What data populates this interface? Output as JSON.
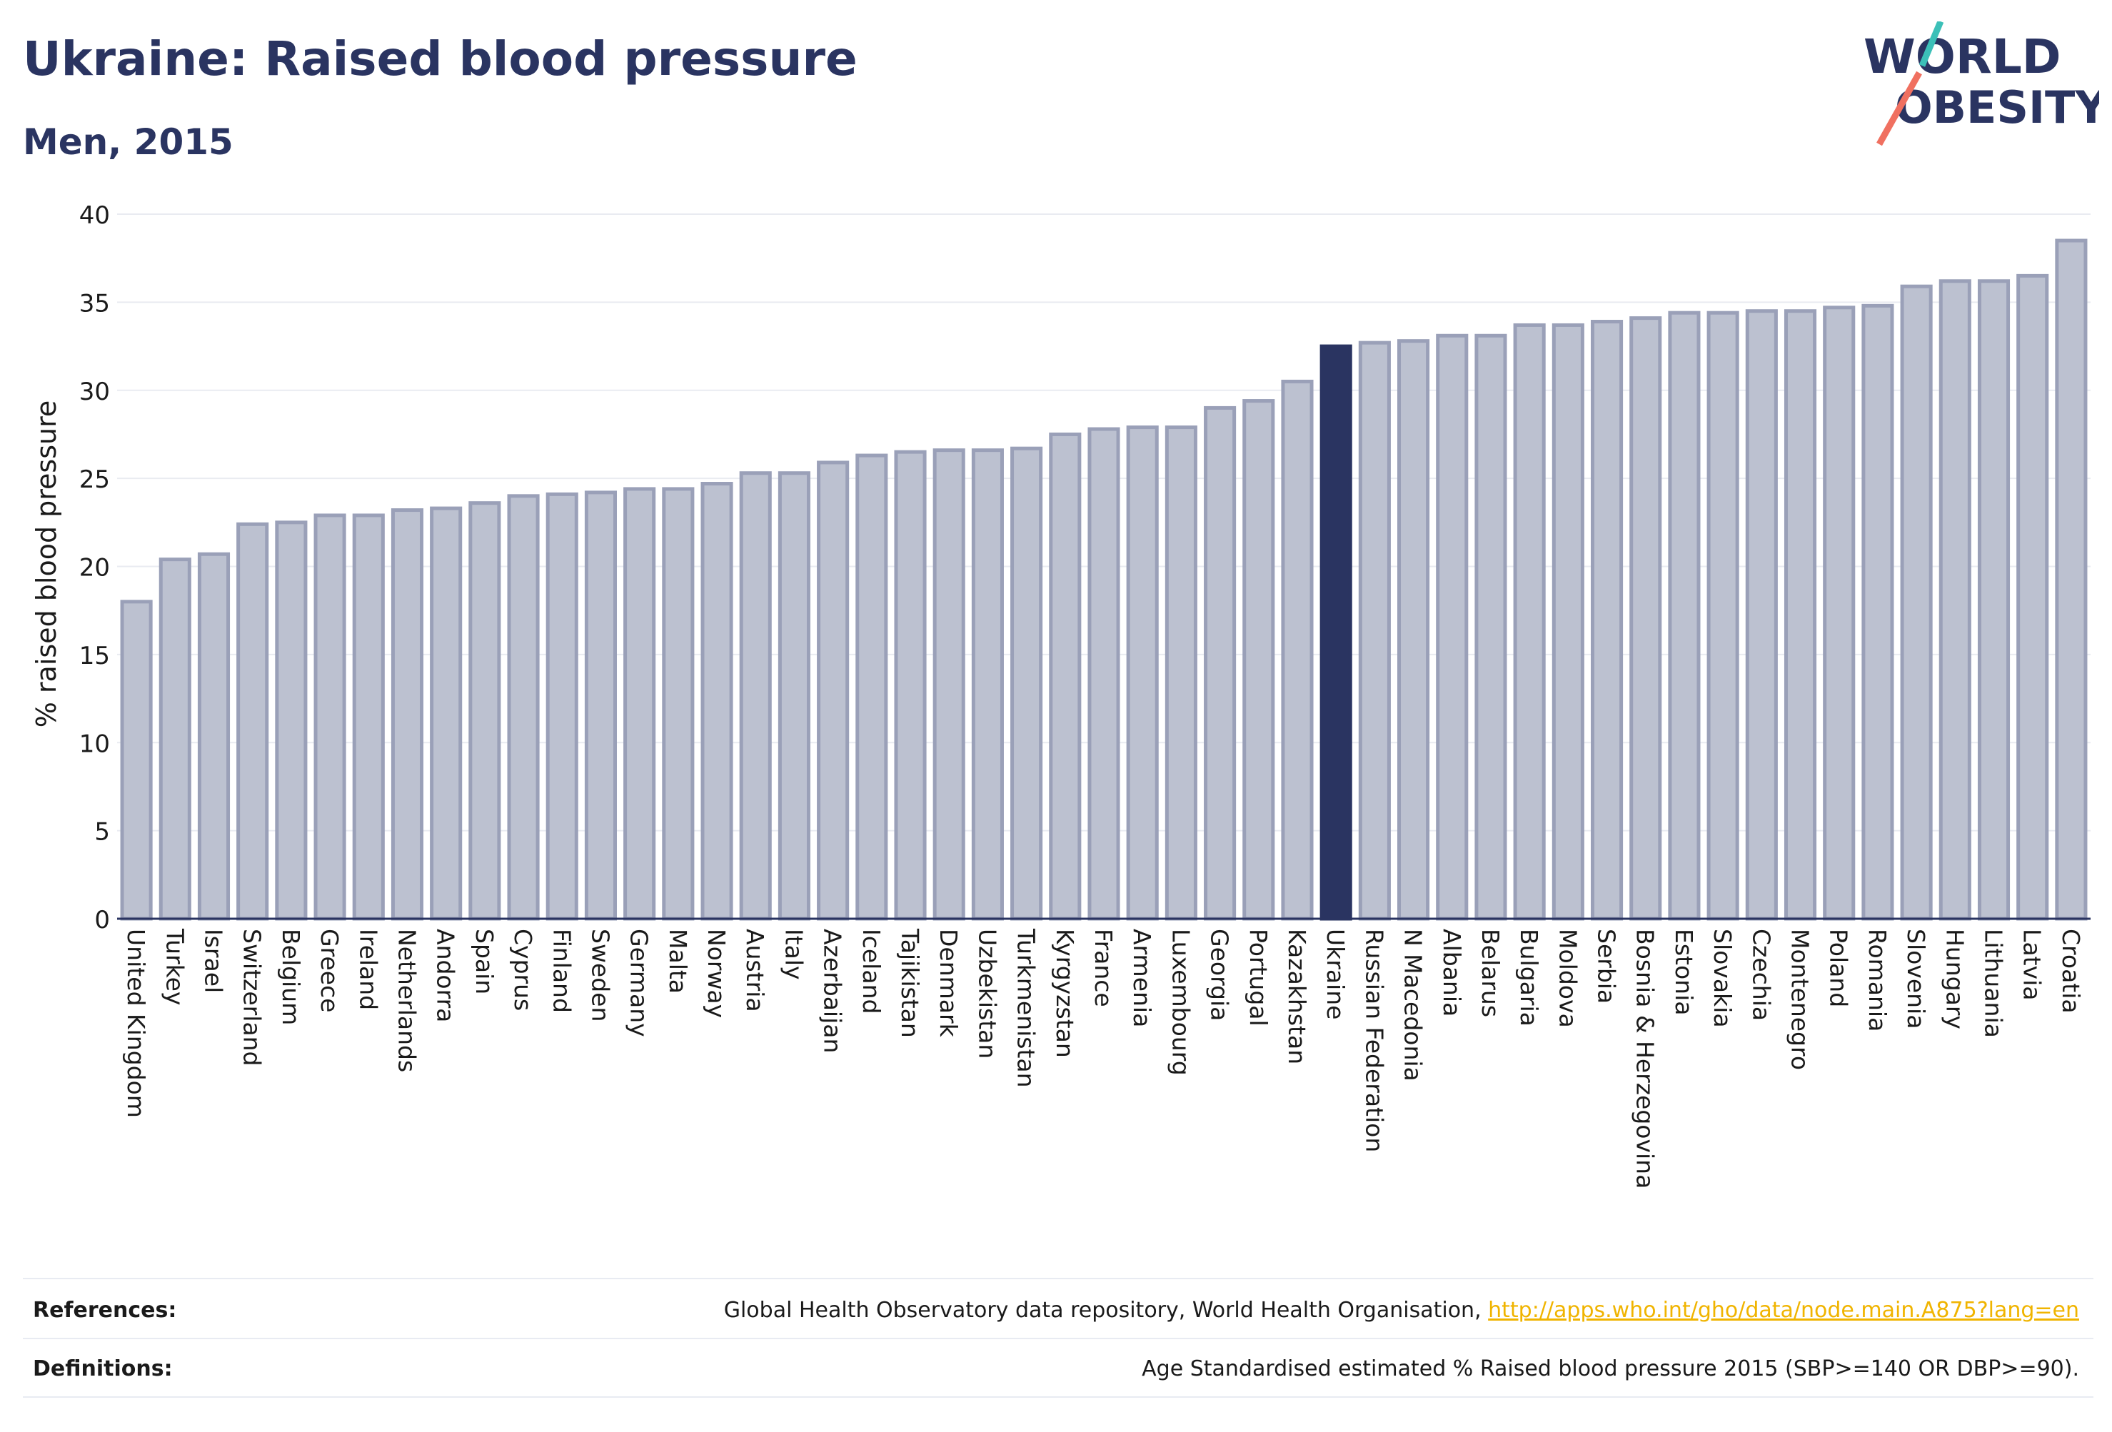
{
  "header": {
    "title": "Ukraine: Raised blood pressure",
    "subtitle": "Men, 2015"
  },
  "logo": {
    "line1": "WORLD",
    "line2": "OBESITY"
  },
  "colors": {
    "bar": "#bcc1d0",
    "bar_border": "#9aa0b8",
    "highlight": "#2a3461",
    "text": "#2a3461",
    "accent_teal": "#3cc0b8",
    "accent_coral": "#f07060",
    "link": "#f0b400"
  },
  "chart_data": {
    "type": "bar",
    "title": "Ukraine: Raised blood pressure",
    "subtitle": "Men, 2015",
    "xlabel": "",
    "ylabel": "% raised blood pressure",
    "ylim": [
      0,
      40
    ],
    "yticks": [
      0,
      5,
      10,
      15,
      20,
      25,
      30,
      35,
      40
    ],
    "grid": true,
    "highlight_category": "Ukraine",
    "categories": [
      "United Kingdom",
      "Turkey",
      "Israel",
      "Switzerland",
      "Belgium",
      "Greece",
      "Ireland",
      "Netherlands",
      "Andorra",
      "Spain",
      "Cyprus",
      "Finland",
      "Sweden",
      "Germany",
      "Malta",
      "Norway",
      "Austria",
      "Italy",
      "Azerbaijan",
      "Iceland",
      "Tajikistan",
      "Denmark",
      "Uzbekistan",
      "Turkmenistan",
      "Kyrgyzstan",
      "France",
      "Armenia",
      "Luxembourg",
      "Georgia",
      "Portugal",
      "Kazakhstan",
      "Ukraine",
      "Russian Federation",
      "N Macedonia",
      "Albania",
      "Belarus",
      "Bulgaria",
      "Moldova",
      "Serbia",
      "Bosnia & Herzegovina",
      "Estonia",
      "Slovakia",
      "Czechia",
      "Montenegro",
      "Poland",
      "Romania",
      "Slovenia",
      "Hungary",
      "Lithuania",
      "Latvia",
      "Croatia"
    ],
    "values": [
      18.0,
      20.4,
      20.7,
      22.4,
      22.5,
      22.9,
      22.9,
      23.2,
      23.3,
      23.6,
      24.0,
      24.1,
      24.2,
      24.4,
      24.4,
      24.7,
      25.3,
      25.3,
      25.9,
      26.3,
      26.5,
      26.6,
      26.6,
      26.7,
      27.5,
      27.8,
      27.9,
      27.9,
      29.0,
      29.4,
      30.5,
      32.5,
      32.7,
      32.8,
      33.1,
      33.1,
      33.7,
      33.7,
      33.9,
      34.1,
      34.4,
      34.4,
      34.5,
      34.5,
      34.7,
      34.8,
      35.9,
      36.2,
      36.2,
      36.5,
      38.5
    ]
  },
  "footer": {
    "references_label": "References:",
    "references_text": "Global Health Observatory data repository, World Health Organisation, ",
    "references_link": "http://apps.who.int/gho/data/node.main.A875?lang=en",
    "definitions_label": "Definitions:",
    "definitions_text": "Age Standardised estimated % Raised blood pressure 2015 (SBP>=140 OR DBP>=90)."
  }
}
